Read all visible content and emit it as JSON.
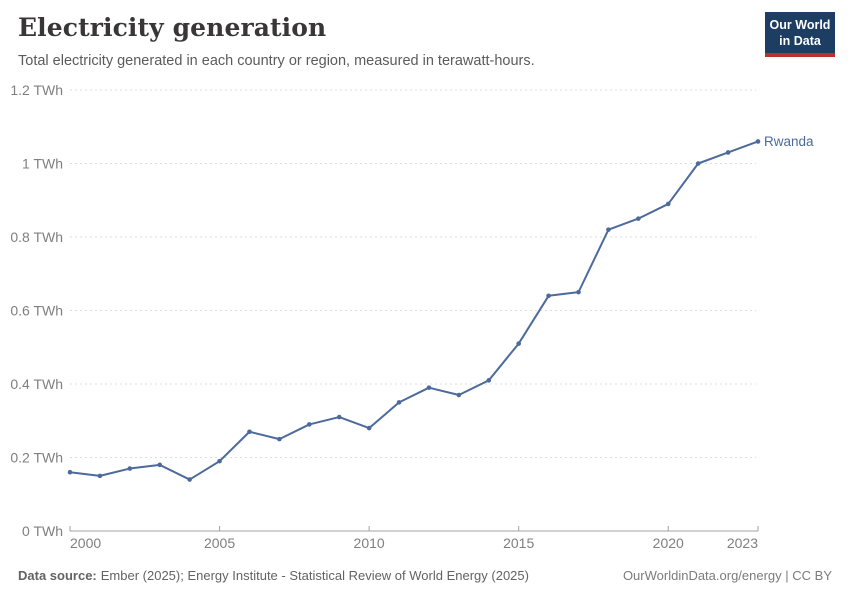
{
  "header": {
    "title": "Electricity generation",
    "subtitle": "Total electricity generated in each country or region, measured in terawatt-hours."
  },
  "logo": {
    "line1": "Our World",
    "line2": "in Data",
    "bg_color": "#1d3d63",
    "accent_color": "#b5332c"
  },
  "chart_data": {
    "type": "line",
    "title": "Electricity generation",
    "x": [
      2000,
      2001,
      2002,
      2003,
      2004,
      2005,
      2006,
      2007,
      2008,
      2009,
      2010,
      2011,
      2012,
      2013,
      2014,
      2015,
      2016,
      2017,
      2018,
      2019,
      2020,
      2021,
      2022,
      2023
    ],
    "series": [
      {
        "name": "Rwanda",
        "color": "#4c6a9c",
        "values": [
          0.16,
          0.15,
          0.17,
          0.18,
          0.14,
          0.19,
          0.27,
          0.25,
          0.29,
          0.31,
          0.28,
          0.35,
          0.39,
          0.37,
          0.41,
          0.51,
          0.64,
          0.65,
          0.82,
          0.85,
          0.89,
          1.0,
          1.03,
          1.06
        ]
      }
    ],
    "xlim": [
      2000,
      2023
    ],
    "ylim": [
      0,
      1.2
    ],
    "x_ticks": [
      2000,
      2005,
      2010,
      2015,
      2020,
      2023
    ],
    "y_ticks": [
      0,
      0.2,
      0.4,
      0.6,
      0.8,
      1,
      1.2
    ],
    "y_tick_suffix": " TWh",
    "grid": true,
    "legend_position": "end-of-line"
  },
  "footer": {
    "source_label": "Data source:",
    "source_text": "Ember (2025); Energy Institute - Statistical Review of World Energy (2025)",
    "credit": "OurWorldinData.org/energy | CC BY"
  }
}
